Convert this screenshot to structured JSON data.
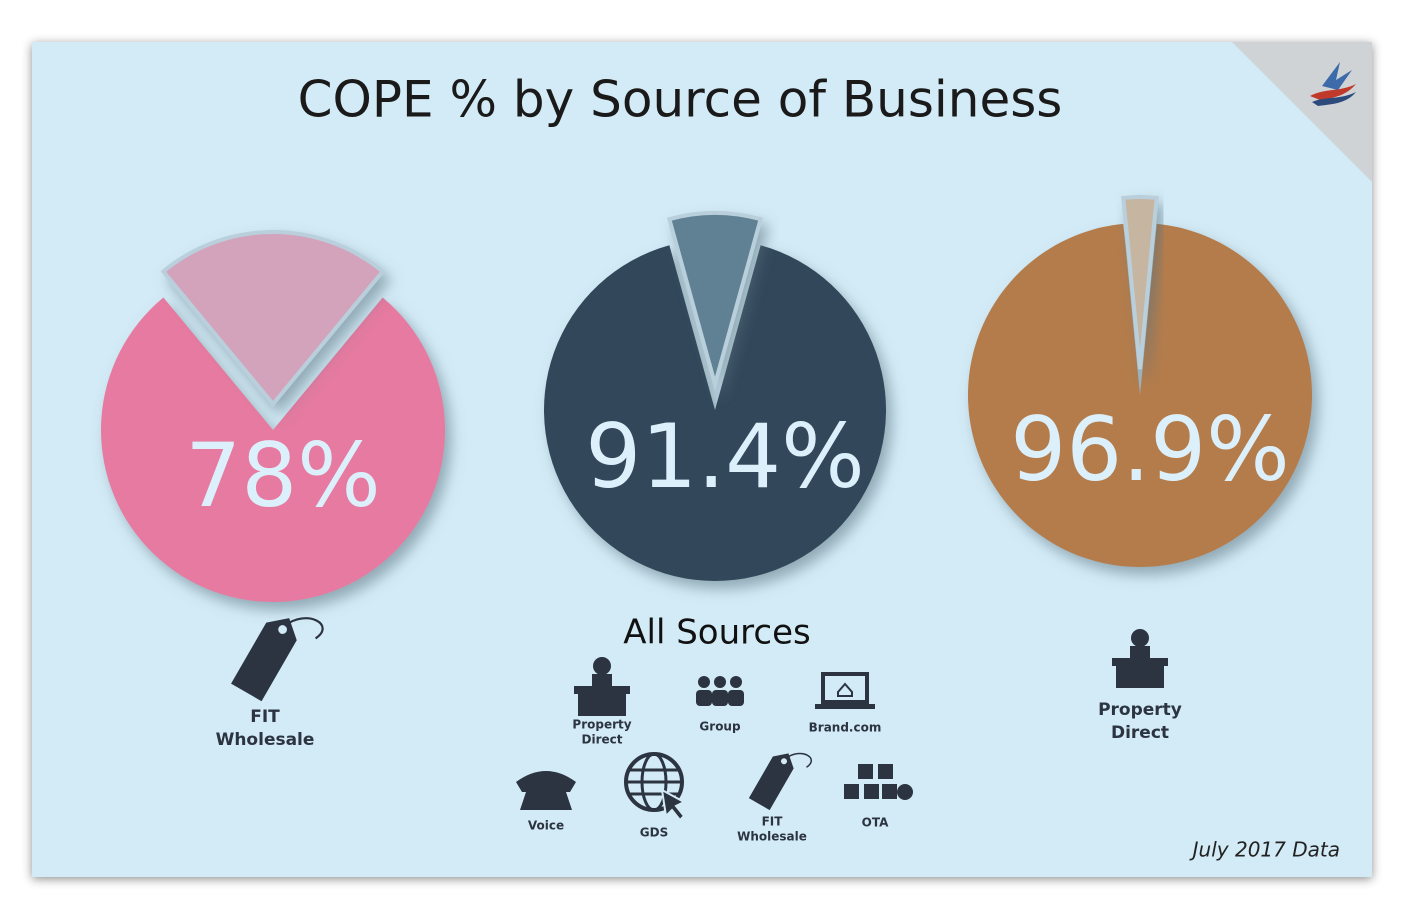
{
  "title": "COPE % by Source of Business",
  "footnote": "July 2017 Data",
  "chart_data": [
    {
      "type": "pie",
      "values": [
        78,
        22
      ],
      "value_labels": [
        "78%",
        null
      ],
      "colors": [
        "#e67aa0",
        "#d3a3bb"
      ],
      "caption": [
        "FIT",
        "Wholesale"
      ]
    },
    {
      "type": "pie",
      "values": [
        91.4,
        8.6
      ],
      "value_labels": [
        "91.4%",
        null
      ],
      "colors": [
        "#30475a",
        "#5f8193"
      ],
      "caption": [
        "All Sources"
      ],
      "sources": [
        [
          "Property",
          "Direct"
        ],
        [
          "Group"
        ],
        [
          "Brand.com"
        ],
        [
          "Voice"
        ],
        [
          "GDS"
        ],
        [
          "FIT",
          "Wholesale"
        ],
        [
          "OTA"
        ]
      ]
    },
    {
      "type": "pie",
      "values": [
        96.9,
        3.1
      ],
      "value_labels": [
        "96.9%",
        null
      ],
      "colors": [
        "#b47c4b",
        "#c6b5a1"
      ],
      "caption": [
        "Property",
        "Direct"
      ]
    }
  ]
}
